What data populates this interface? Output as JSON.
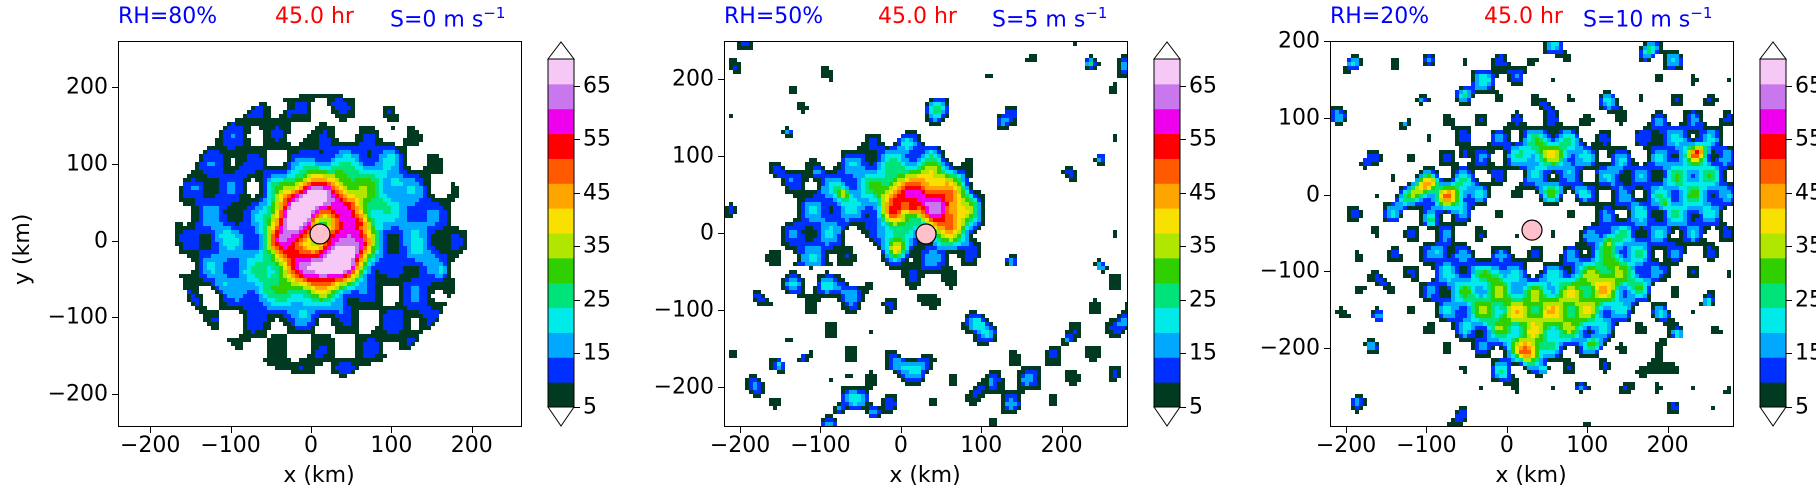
{
  "chart_data": [
    {
      "type": "heatmap",
      "title": {
        "rh": "RH=80%",
        "time": "45.0 hr",
        "shear": "S=0 m s",
        "shear_exp": "−1"
      },
      "xlabel": "x (km)",
      "ylabel": "y (km)",
      "xlim": [
        -240,
        260
      ],
      "ylim": [
        -240,
        260
      ],
      "xticks": [
        -200,
        -100,
        0,
        100,
        200
      ],
      "yticks": [
        -200,
        -100,
        0,
        100,
        200
      ],
      "xtick_labels": [
        "−200",
        "−100",
        "0",
        "100",
        "200"
      ],
      "ytick_labels": [
        "−200",
        "−100",
        "0",
        "100",
        "200"
      ],
      "center_marker": {
        "x": 10,
        "y": 10
      },
      "structure": "symmetric spiral, intense inner core"
    },
    {
      "type": "heatmap",
      "title": {
        "rh": "RH=50%",
        "time": "45.0 hr",
        "shear": "S=5 m s",
        "shear_exp": "−1"
      },
      "xlabel": "x (km)",
      "ylabel": "",
      "xlim": [
        -220,
        280
      ],
      "ylim": [
        -250,
        250
      ],
      "xticks": [
        -200,
        -100,
        0,
        100,
        200
      ],
      "yticks": [
        -200,
        -100,
        0,
        100,
        200
      ],
      "xtick_labels": [
        "−200",
        "−100",
        "0",
        "100",
        "200"
      ],
      "ytick_labels": [
        "−200",
        "−100",
        "0",
        "100",
        "200"
      ],
      "center_marker": {
        "x": 30,
        "y": 0
      },
      "structure": "asymmetric, large band to north-east"
    },
    {
      "type": "heatmap",
      "title": {
        "rh": "RH=20%",
        "time": "45.0 hr",
        "shear": "S=10 m s",
        "shear_exp": "−1"
      },
      "xlabel": "x (km)",
      "ylabel": "",
      "xlim": [
        -220,
        280
      ],
      "ylim": [
        -300,
        200
      ],
      "xticks": [
        -200,
        -100,
        0,
        100,
        200
      ],
      "yticks": [
        -200,
        -100,
        0,
        100,
        200
      ],
      "xtick_labels": [
        "−200",
        "−100",
        "0",
        "100",
        "200"
      ],
      "ytick_labels": [
        "−200",
        "−100",
        "0",
        "100",
        "200"
      ],
      "center_marker": {
        "x": 30,
        "y": -45
      },
      "structure": "fragmented convection south and east"
    }
  ],
  "colorbar": {
    "levels": [
      5,
      10,
      15,
      20,
      25,
      30,
      35,
      40,
      45,
      50,
      55,
      60,
      65,
      70
    ],
    "tick_labels": [
      "5",
      "15",
      "25",
      "35",
      "45",
      "55",
      "65"
    ],
    "tick_values": [
      5,
      15,
      25,
      35,
      45,
      55,
      65
    ],
    "colors": [
      "#003a20",
      "#0030ff",
      "#00a8ff",
      "#00eaea",
      "#00e27a",
      "#30d000",
      "#b0e600",
      "#f8e000",
      "#ffa500",
      "#ff5a00",
      "#ff0000",
      "#ee00ee",
      "#c878ec",
      "#f5c8f5"
    ],
    "extend": "both"
  },
  "colors": {
    "rh_text": "#0000ff",
    "time_text": "#ff0000",
    "shear_text": "#0000ff",
    "center_marker_fill": "#ffc0cb"
  }
}
